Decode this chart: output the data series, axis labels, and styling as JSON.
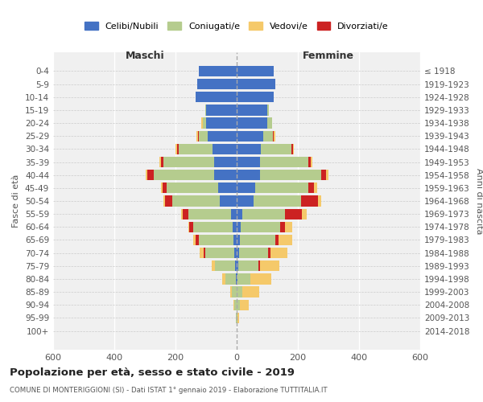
{
  "age_groups": [
    "0-4",
    "5-9",
    "10-14",
    "15-19",
    "20-24",
    "25-29",
    "30-34",
    "35-39",
    "40-44",
    "45-49",
    "50-54",
    "55-59",
    "60-64",
    "65-69",
    "70-74",
    "75-79",
    "80-84",
    "85-89",
    "90-94",
    "95-99",
    "100+"
  ],
  "birth_years": [
    "2014-2018",
    "2009-2013",
    "2004-2008",
    "1999-2003",
    "1994-1998",
    "1989-1993",
    "1984-1988",
    "1979-1983",
    "1974-1978",
    "1969-1973",
    "1964-1968",
    "1959-1963",
    "1954-1958",
    "1949-1953",
    "1944-1948",
    "1939-1943",
    "1934-1938",
    "1929-1933",
    "1924-1928",
    "1919-1923",
    "≤ 1918"
  ],
  "colors": {
    "celibe": "#4472c4",
    "coniugato": "#b5cc8e",
    "vedovo": "#f5c96a",
    "divorziato": "#cc2222"
  },
  "males": {
    "celibe": [
      125,
      130,
      135,
      100,
      100,
      95,
      80,
      75,
      75,
      60,
      55,
      18,
      12,
      10,
      8,
      5,
      2,
      0,
      0,
      0,
      0
    ],
    "coniugato": [
      0,
      0,
      0,
      3,
      10,
      30,
      110,
      165,
      195,
      170,
      155,
      140,
      130,
      115,
      95,
      65,
      35,
      15,
      8,
      2,
      0
    ],
    "vedovo": [
      0,
      0,
      0,
      0,
      5,
      5,
      5,
      5,
      5,
      5,
      5,
      5,
      5,
      10,
      12,
      10,
      10,
      5,
      2,
      0,
      0
    ],
    "divorziato": [
      0,
      0,
      0,
      0,
      0,
      2,
      5,
      8,
      22,
      12,
      25,
      18,
      12,
      8,
      5,
      2,
      0,
      0,
      0,
      0,
      0
    ]
  },
  "females": {
    "nubile": [
      120,
      125,
      120,
      100,
      100,
      88,
      78,
      75,
      75,
      60,
      55,
      18,
      12,
      10,
      8,
      5,
      2,
      0,
      0,
      0,
      0
    ],
    "coniugata": [
      0,
      0,
      0,
      5,
      15,
      30,
      100,
      160,
      200,
      175,
      155,
      140,
      130,
      115,
      95,
      65,
      42,
      18,
      10,
      2,
      0
    ],
    "vedova": [
      0,
      0,
      0,
      0,
      0,
      5,
      5,
      5,
      8,
      10,
      10,
      15,
      25,
      45,
      55,
      65,
      70,
      55,
      30,
      5,
      0
    ],
    "divorziata": [
      0,
      0,
      0,
      0,
      0,
      2,
      5,
      8,
      18,
      18,
      55,
      55,
      15,
      12,
      8,
      5,
      0,
      0,
      0,
      0,
      0
    ]
  },
  "title": "Popolazione per età, sesso e stato civile - 2019",
  "subtitle": "COMUNE DI MONTERIGGIONI (SI) - Dati ISTAT 1° gennaio 2019 - Elaborazione TUTTITALIA.IT",
  "xlabel_left": "Maschi",
  "xlabel_right": "Femmine",
  "ylabel_left": "Fasce di età",
  "ylabel_right": "Anni di nascita",
  "xlim": 600,
  "legend_labels": [
    "Celibi/Nubili",
    "Coniugati/e",
    "Vedovi/e",
    "Divorziati/e"
  ],
  "background_color": "#f0f0f0"
}
